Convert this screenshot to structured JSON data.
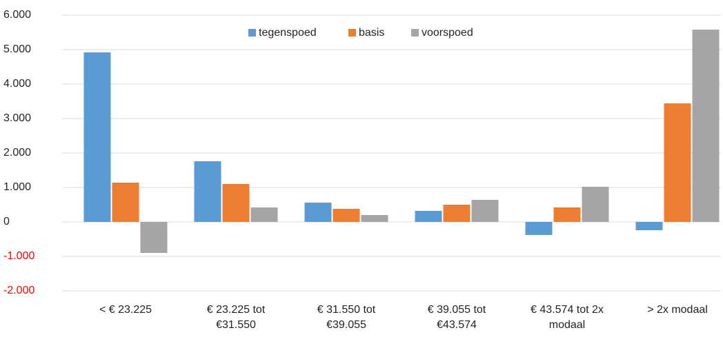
{
  "chart_data": {
    "type": "bar",
    "categories": [
      "< € 23.225",
      "€ 23.225 tot €31.550",
      "€ 31.550 tot €39.055",
      "€ 39.055 tot €43.574",
      "€ 43.574 tot 2x modaal",
      "> 2x modaal"
    ],
    "series": [
      {
        "name": "tegenspoed",
        "color": "#5b9bd5",
        "values": [
          4920,
          1760,
          560,
          320,
          -380,
          -240
        ]
      },
      {
        "name": "basis",
        "color": "#ed7d31",
        "values": [
          1140,
          1100,
          380,
          500,
          420,
          3440
        ]
      },
      {
        "name": "voorspoed",
        "color": "#a5a5a5",
        "values": [
          -900,
          420,
          200,
          640,
          1020,
          5580
        ]
      }
    ],
    "ylim": [
      -2000,
      6000
    ],
    "yticks": [
      {
        "value": -2000,
        "label": "-2.000"
      },
      {
        "value": -1000,
        "label": "-1.000"
      },
      0,
      {
        "value": 1000,
        "label": "1.000"
      },
      {
        "value": 2000,
        "label": "2.000"
      },
      {
        "value": 3000,
        "label": "3.000"
      },
      {
        "value": 4000,
        "label": "4.000"
      },
      {
        "value": 5000,
        "label": "5.000"
      },
      {
        "value": 6000,
        "label": "6.000"
      }
    ],
    "negative_tick_color": "#ff0000",
    "grid": true,
    "legend": "top"
  }
}
